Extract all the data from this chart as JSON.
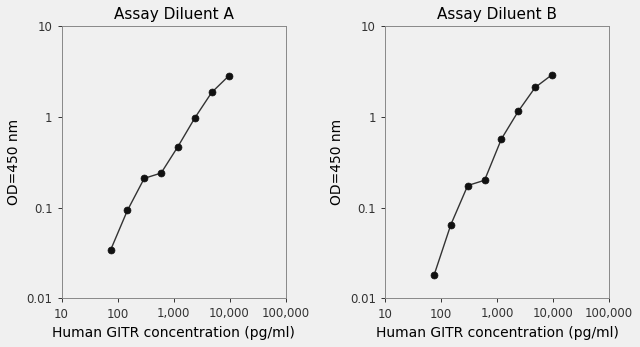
{
  "panel_A": {
    "title": "Assay Diluent A",
    "x": [
      75,
      150,
      300,
      600,
      1200,
      2400,
      4800,
      9600
    ],
    "y": [
      0.034,
      0.093,
      0.21,
      0.24,
      0.47,
      0.97,
      1.85,
      2.8
    ]
  },
  "panel_B": {
    "title": "Assay Diluent B",
    "x": [
      75,
      150,
      300,
      600,
      1200,
      2400,
      4800,
      9600
    ],
    "y": [
      0.018,
      0.065,
      0.175,
      0.2,
      0.57,
      1.15,
      2.1,
      2.9
    ]
  },
  "xlabel": "Human GITR concentration (pg/ml)",
  "ylabel": "OD=450 nm",
  "xlim": [
    10,
    100000
  ],
  "ylim": [
    0.01,
    10
  ],
  "xticks": [
    10,
    100,
    1000,
    10000,
    100000
  ],
  "xticklabels": [
    "10",
    "100",
    "1,000",
    "10,000",
    "100,000"
  ],
  "yticks": [
    0.01,
    0.1,
    1,
    10
  ],
  "yticklabels": [
    "0.01",
    "0.1",
    "1",
    "10"
  ],
  "line_color": "#333333",
  "marker_color": "#111111",
  "bg_color": "#f0f0f0",
  "title_fontsize": 11,
  "label_fontsize": 10,
  "tick_fontsize": 8.5,
  "marker_size": 5,
  "line_width": 1.0
}
